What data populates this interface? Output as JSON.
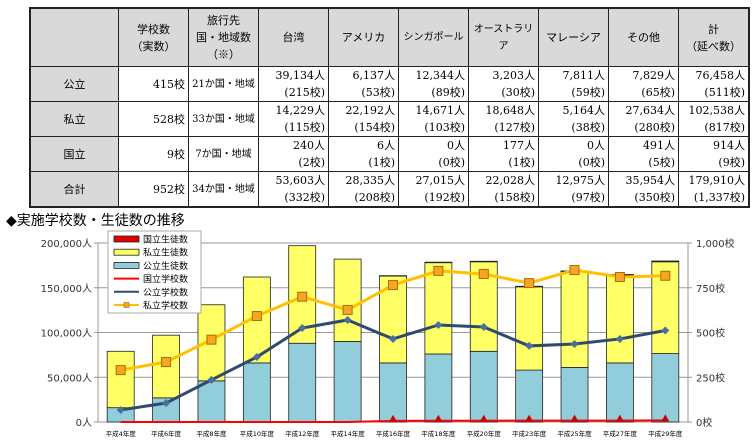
{
  "table": {
    "headers": [
      {
        "line1": "",
        "line2": ""
      },
      {
        "line1": "学校数",
        "line2": "（実数）"
      },
      {
        "line1": "旅行先",
        "line2": "国・地域数",
        "line3": "（※）"
      },
      {
        "line1": "台湾"
      },
      {
        "line1": "アメリカ"
      },
      {
        "line1": "シンガポール"
      },
      {
        "line1": "オーストラリア"
      },
      {
        "line1": "マレーシア"
      },
      {
        "line1": "その他"
      },
      {
        "line1": "計",
        "line2": "（延べ数）"
      }
    ],
    "rows": [
      {
        "label": "公立",
        "schools": "415校",
        "countries": "21か国・地域",
        "cells": [
          [
            "39,134人",
            "(215校)"
          ],
          [
            "6,137人",
            "(53校)"
          ],
          [
            "12,344人",
            "(89校)"
          ],
          [
            "3,203人",
            "(30校)"
          ],
          [
            "7,811人",
            "(59校)"
          ],
          [
            "7,829人",
            "(65校)"
          ],
          [
            "76,458人",
            "(511校)"
          ]
        ]
      },
      {
        "label": "私立",
        "schools": "528校",
        "countries": "33か国・地域",
        "cells": [
          [
            "14,229人",
            "(115校)"
          ],
          [
            "22,192人",
            "(154校)"
          ],
          [
            "14,671人",
            "(103校)"
          ],
          [
            "18,648人",
            "(127校)"
          ],
          [
            "5,164人",
            "(38校)"
          ],
          [
            "27,634人",
            "(280校)"
          ],
          [
            "102,538人",
            "(817校)"
          ]
        ]
      },
      {
        "label": "国立",
        "schools": "9校",
        "countries": "7か国・地域",
        "cells": [
          [
            "240人",
            "(2校)"
          ],
          [
            "6人",
            "(1校)"
          ],
          [
            "0人",
            "(0校)"
          ],
          [
            "177人",
            "(1校)"
          ],
          [
            "0人",
            "(0校)"
          ],
          [
            "491人",
            "(5校)"
          ],
          [
            "914人",
            "(9校)"
          ]
        ]
      },
      {
        "label": "合計",
        "schools": "952校",
        "countries": "34か国・地域",
        "cells": [
          [
            "53,603人",
            "(332校)"
          ],
          [
            "28,335人",
            "(208校)"
          ],
          [
            "27,015人",
            "(192校)"
          ],
          [
            "22,028人",
            "(158校)"
          ],
          [
            "12,975人",
            "(97校)"
          ],
          [
            "35,954人",
            "(350校)"
          ],
          [
            "179,910人",
            "(1,337校)"
          ]
        ]
      }
    ]
  },
  "chart_data": {
    "type": "bar",
    "title": "◆実施学校数・生徒数の推移",
    "categories": [
      "平成4年度",
      "平成6年度",
      "平成8年度",
      "平成10年度",
      "平成12年度",
      "平成14年度",
      "平成16年度",
      "平成18年度",
      "平成20年度",
      "平成23年度",
      "平成25年度",
      "平成27年度",
      "平成29年度"
    ],
    "left_axis": {
      "ylim": [
        0,
        200000
      ],
      "ticks": [
        "0人",
        "50,000人",
        "100,000人",
        "150,000人",
        "200,000人"
      ]
    },
    "right_axis": {
      "ylim": [
        0,
        1000
      ],
      "ticks": [
        "0校",
        "250校",
        "500校",
        "750校",
        "1,000校"
      ]
    },
    "grid": true,
    "legend_position": "top-left",
    "bar_series": [
      {
        "name": "公立生徒数",
        "color": "#92cddc",
        "values": [
          16000,
          27000,
          46000,
          66000,
          88000,
          90000,
          66000,
          76000,
          79000,
          58000,
          61000,
          66000,
          76458
        ]
      },
      {
        "name": "私立生徒数",
        "color": "#ffff66",
        "values": [
          63000,
          70000,
          85000,
          96000,
          109000,
          92000,
          97000,
          102000,
          100000,
          93000,
          107000,
          98000,
          102538
        ]
      },
      {
        "name": "国立生徒数",
        "color": "#e00000",
        "values": [
          0,
          0,
          0,
          0,
          0,
          0,
          500,
          600,
          600,
          700,
          800,
          800,
          914
        ]
      }
    ],
    "line_series": [
      {
        "name": "国立学校数",
        "color": "#ff0000",
        "marker": "triangle",
        "values": [
          0,
          0,
          0,
          0,
          0,
          0,
          6,
          7,
          7,
          8,
          8,
          8,
          9
        ]
      },
      {
        "name": "公立学校数",
        "color": "#2f4a6f",
        "marker": "diamond",
        "values": [
          67,
          106,
          235,
          363,
          525,
          570,
          464,
          542,
          531,
          425,
          436,
          464,
          511
        ]
      },
      {
        "name": "私立学校数",
        "color": "#ffc000",
        "marker": "square",
        "values": [
          290,
          335,
          460,
          592,
          700,
          626,
          765,
          844,
          827,
          776,
          849,
          810,
          817
        ]
      }
    ],
    "legend": [
      "国立生徒数",
      "私立生徒数",
      "公立生徒数",
      "国立学校数",
      "公立学校数",
      "私立学校数"
    ]
  }
}
